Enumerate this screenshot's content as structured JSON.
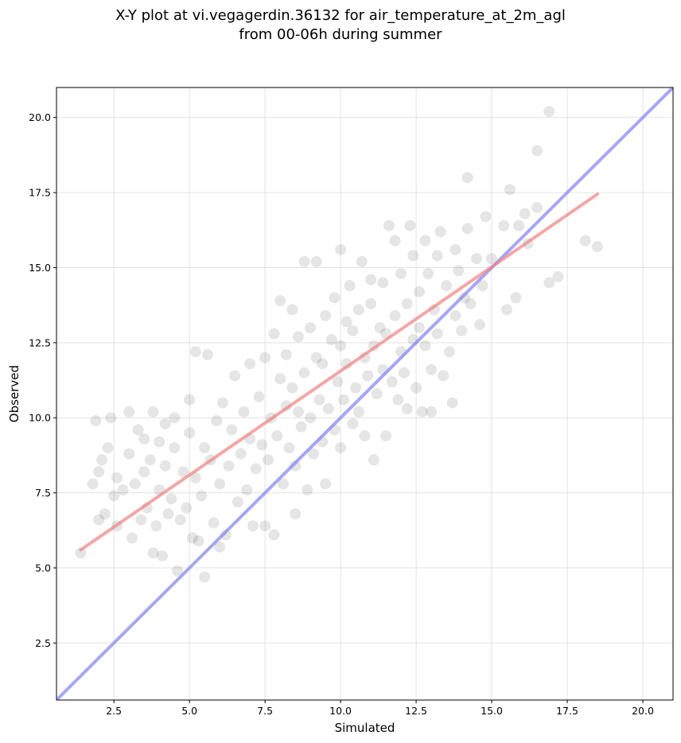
{
  "chart_data": {
    "type": "scatter",
    "title_line1": "X-Y plot at vi.vegagerdin.36132 for air_temperature_at_2m_agl",
    "title_line2": "from 00-06h during summer",
    "xlabel": "Simulated",
    "ylabel": "Observed",
    "xlim": [
      0.6,
      21.0
    ],
    "ylim": [
      0.6,
      21.0
    ],
    "xticks": [
      2.5,
      5.0,
      7.5,
      10.0,
      12.5,
      15.0,
      17.5,
      20.0
    ],
    "yticks": [
      2.5,
      5.0,
      7.5,
      10.0,
      12.5,
      15.0,
      17.5,
      20.0
    ],
    "xtick_labels": [
      "2.5",
      "5.0",
      "7.5",
      "10.0",
      "12.5",
      "15.0",
      "17.5",
      "20.0"
    ],
    "ytick_labels": [
      "2.5",
      "5.0",
      "7.5",
      "10.0",
      "12.5",
      "15.0",
      "17.5",
      "20.0"
    ],
    "grid": true,
    "point_color": "#000000",
    "fit_line": {
      "color": "#f08080",
      "x": [
        1.4,
        18.5
      ],
      "y": [
        5.6,
        17.45
      ]
    },
    "identity_line": {
      "color": "#8080f0",
      "x": [
        0.6,
        21.0
      ],
      "y": [
        0.6,
        21.0
      ]
    },
    "points": [
      [
        1.4,
        5.5
      ],
      [
        1.8,
        7.8
      ],
      [
        1.9,
        9.9
      ],
      [
        2.0,
        6.6
      ],
      [
        2.0,
        8.2
      ],
      [
        2.1,
        8.6
      ],
      [
        2.2,
        6.8
      ],
      [
        2.3,
        9.0
      ],
      [
        2.4,
        10.0
      ],
      [
        2.5,
        7.4
      ],
      [
        2.6,
        6.4
      ],
      [
        2.6,
        8.0
      ],
      [
        2.8,
        7.6
      ],
      [
        3.0,
        8.8
      ],
      [
        3.0,
        10.2
      ],
      [
        3.1,
        6.0
      ],
      [
        3.2,
        7.8
      ],
      [
        3.3,
        9.6
      ],
      [
        3.4,
        6.6
      ],
      [
        3.5,
        8.2
      ],
      [
        3.5,
        9.3
      ],
      [
        3.6,
        7.0
      ],
      [
        3.7,
        8.6
      ],
      [
        3.8,
        5.5
      ],
      [
        3.8,
        10.2
      ],
      [
        3.9,
        6.4
      ],
      [
        4.0,
        7.6
      ],
      [
        4.0,
        9.2
      ],
      [
        4.1,
        5.4
      ],
      [
        4.2,
        8.4
      ],
      [
        4.2,
        9.8
      ],
      [
        4.3,
        6.8
      ],
      [
        4.4,
        7.3
      ],
      [
        4.5,
        9.0
      ],
      [
        4.5,
        10.0
      ],
      [
        4.6,
        4.9
      ],
      [
        4.7,
        6.6
      ],
      [
        4.8,
        8.2
      ],
      [
        4.9,
        7.0
      ],
      [
        5.0,
        9.5
      ],
      [
        5.0,
        10.6
      ],
      [
        5.1,
        6.0
      ],
      [
        5.2,
        8.0
      ],
      [
        5.2,
        12.2
      ],
      [
        5.3,
        5.9
      ],
      [
        5.4,
        7.4
      ],
      [
        5.5,
        4.7
      ],
      [
        5.5,
        9.0
      ],
      [
        5.6,
        12.1
      ],
      [
        5.7,
        8.6
      ],
      [
        5.8,
        6.5
      ],
      [
        5.9,
        9.9
      ],
      [
        6.0,
        5.7
      ],
      [
        6.0,
        7.8
      ],
      [
        6.1,
        10.5
      ],
      [
        6.2,
        6.1
      ],
      [
        6.3,
        8.4
      ],
      [
        6.4,
        9.6
      ],
      [
        6.5,
        11.4
      ],
      [
        6.6,
        7.2
      ],
      [
        6.7,
        8.8
      ],
      [
        6.8,
        10.2
      ],
      [
        6.9,
        7.6
      ],
      [
        7.0,
        9.3
      ],
      [
        7.0,
        11.8
      ],
      [
        7.1,
        6.4
      ],
      [
        7.2,
        8.3
      ],
      [
        7.3,
        10.7
      ],
      [
        7.4,
        9.1
      ],
      [
        7.5,
        6.4
      ],
      [
        7.5,
        12.0
      ],
      [
        7.6,
        8.6
      ],
      [
        7.7,
        10.0
      ],
      [
        7.8,
        6.1
      ],
      [
        7.8,
        12.8
      ],
      [
        7.9,
        9.4
      ],
      [
        8.0,
        11.3
      ],
      [
        8.0,
        13.9
      ],
      [
        8.1,
        7.8
      ],
      [
        8.2,
        10.4
      ],
      [
        8.2,
        12.1
      ],
      [
        8.3,
        9.0
      ],
      [
        8.4,
        13.6
      ],
      [
        8.4,
        11.0
      ],
      [
        8.5,
        6.8
      ],
      [
        8.5,
        8.4
      ],
      [
        8.6,
        10.2
      ],
      [
        8.6,
        12.7
      ],
      [
        8.7,
        9.7
      ],
      [
        8.8,
        15.2
      ],
      [
        8.8,
        11.5
      ],
      [
        8.9,
        7.6
      ],
      [
        9.0,
        10.0
      ],
      [
        9.0,
        13.0
      ],
      [
        9.1,
        8.8
      ],
      [
        9.2,
        12.0
      ],
      [
        9.2,
        15.2
      ],
      [
        9.3,
        10.6
      ],
      [
        9.4,
        9.2
      ],
      [
        9.4,
        11.8
      ],
      [
        9.5,
        13.4
      ],
      [
        9.5,
        7.8
      ],
      [
        9.6,
        10.3
      ],
      [
        9.7,
        12.6
      ],
      [
        9.8,
        9.6
      ],
      [
        9.8,
        14.0
      ],
      [
        9.9,
        11.2
      ],
      [
        10.0,
        9.0
      ],
      [
        10.0,
        12.4
      ],
      [
        10.0,
        15.6
      ],
      [
        10.1,
        10.6
      ],
      [
        10.2,
        13.2
      ],
      [
        10.2,
        11.8
      ],
      [
        10.3,
        14.4
      ],
      [
        10.4,
        9.8
      ],
      [
        10.4,
        12.9
      ],
      [
        10.5,
        11.0
      ],
      [
        10.6,
        13.6
      ],
      [
        10.6,
        10.2
      ],
      [
        10.7,
        15.2
      ],
      [
        10.8,
        12.0
      ],
      [
        10.8,
        9.4
      ],
      [
        10.9,
        11.4
      ],
      [
        11.0,
        13.8
      ],
      [
        11.0,
        14.6
      ],
      [
        11.1,
        8.6
      ],
      [
        11.1,
        12.4
      ],
      [
        11.2,
        10.8
      ],
      [
        11.3,
        13.0
      ],
      [
        11.4,
        11.6
      ],
      [
        11.4,
        14.5
      ],
      [
        11.5,
        9.4
      ],
      [
        11.5,
        12.8
      ],
      [
        11.6,
        16.4
      ],
      [
        11.7,
        11.2
      ],
      [
        11.8,
        13.4
      ],
      [
        11.8,
        15.9
      ],
      [
        11.9,
        10.6
      ],
      [
        12.0,
        12.2
      ],
      [
        12.0,
        14.8
      ],
      [
        12.1,
        11.5
      ],
      [
        12.2,
        13.8
      ],
      [
        12.2,
        10.3
      ],
      [
        12.3,
        16.4
      ],
      [
        12.4,
        12.6
      ],
      [
        12.4,
        15.4
      ],
      [
        12.5,
        11.0
      ],
      [
        12.6,
        14.2
      ],
      [
        12.6,
        13.0
      ],
      [
        12.7,
        10.2
      ],
      [
        12.8,
        15.9
      ],
      [
        12.8,
        12.4
      ],
      [
        12.9,
        14.8
      ],
      [
        13.0,
        11.6
      ],
      [
        13.0,
        10.2
      ],
      [
        13.1,
        13.6
      ],
      [
        13.2,
        15.4
      ],
      [
        13.2,
        12.8
      ],
      [
        13.3,
        16.2
      ],
      [
        13.4,
        11.4
      ],
      [
        13.5,
        14.4
      ],
      [
        13.6,
        12.2
      ],
      [
        13.7,
        10.5
      ],
      [
        13.8,
        15.6
      ],
      [
        13.8,
        13.4
      ],
      [
        13.9,
        14.9
      ],
      [
        14.0,
        12.9
      ],
      [
        14.1,
        14.0
      ],
      [
        14.2,
        16.3
      ],
      [
        14.2,
        18.0
      ],
      [
        14.3,
        13.8
      ],
      [
        14.5,
        15.3
      ],
      [
        14.6,
        13.1
      ],
      [
        14.7,
        14.4
      ],
      [
        14.8,
        16.7
      ],
      [
        15.0,
        15.3
      ],
      [
        15.4,
        16.4
      ],
      [
        15.5,
        13.6
      ],
      [
        15.6,
        17.6
      ],
      [
        15.8,
        14.0
      ],
      [
        15.9,
        16.4
      ],
      [
        16.1,
        16.8
      ],
      [
        16.2,
        15.8
      ],
      [
        16.5,
        18.9
      ],
      [
        16.5,
        17.0
      ],
      [
        16.9,
        14.5
      ],
      [
        16.9,
        20.2
      ],
      [
        17.2,
        14.7
      ],
      [
        18.1,
        15.9
      ],
      [
        18.5,
        15.7
      ]
    ]
  }
}
